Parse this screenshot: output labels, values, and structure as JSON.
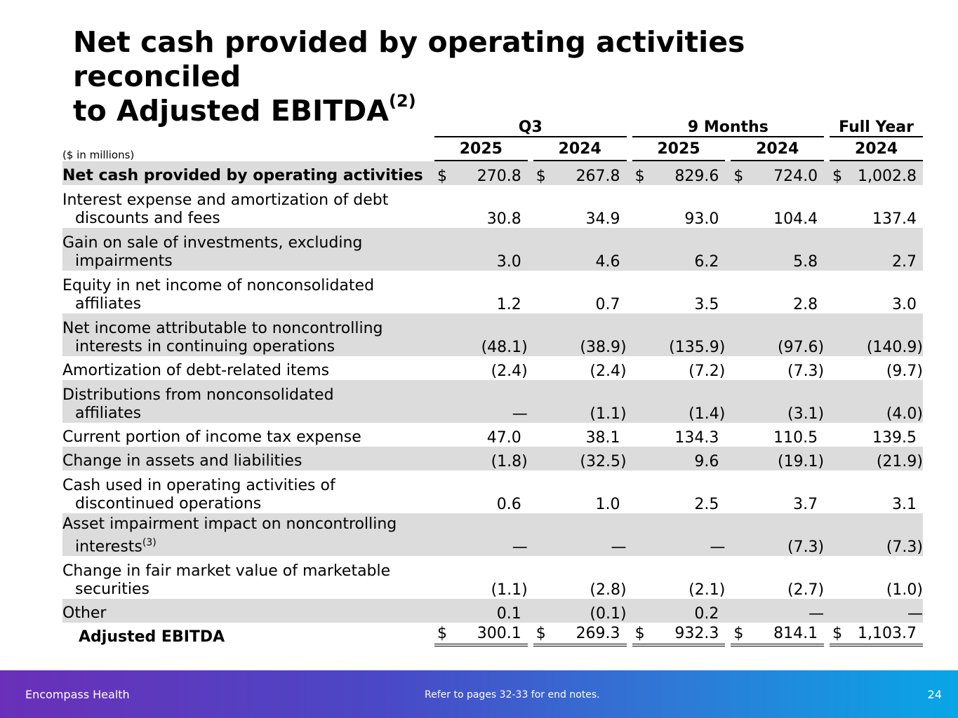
{
  "title": {
    "line1": "Net cash provided by operating activities reconciled",
    "line2": "to Adjusted EBITDA",
    "sup": "(2)"
  },
  "units_label": "($ in millions)",
  "column_groups": [
    "Q3",
    "9 Months",
    "Full Year"
  ],
  "years": [
    "2025",
    "2024",
    "2025",
    "2024",
    "2024"
  ],
  "rows": [
    {
      "l1": "Net cash provided by operating activities",
      "l2": "",
      "sup": "",
      "values": [
        "270.8",
        "267.8",
        "829.6",
        "724.0",
        "1,002.8"
      ],
      "dollar": true
    },
    {
      "l1": "Interest expense and amortization of debt",
      "l2": "discounts and fees",
      "sup": "",
      "values": [
        "30.8",
        "34.9",
        "93.0",
        "104.4",
        "137.4"
      ],
      "dollar": false
    },
    {
      "l1": "Gain on sale of investments, excluding",
      "l2": "impairments",
      "sup": "",
      "values": [
        "3.0",
        "4.6",
        "6.2",
        "5.8",
        "2.7"
      ],
      "dollar": false
    },
    {
      "l1": "Equity in net income of nonconsolidated",
      "l2": "affiliates",
      "sup": "",
      "values": [
        "1.2",
        "0.7",
        "3.5",
        "2.8",
        "3.0"
      ],
      "dollar": false
    },
    {
      "l1": "Net income attributable to noncontrolling",
      "l2": "interests in continuing operations",
      "sup": "",
      "values": [
        "(48.1)",
        "(38.9)",
        "(135.9)",
        "(97.6)",
        "(140.9)"
      ],
      "dollar": false
    },
    {
      "l1": "Amortization of debt-related items",
      "l2": "",
      "sup": "",
      "values": [
        "(2.4)",
        "(2.4)",
        "(7.2)",
        "(7.3)",
        "(9.7)"
      ],
      "dollar": false
    },
    {
      "l1": "Distributions from nonconsolidated",
      "l2": "affiliates",
      "sup": "",
      "values": [
        "—",
        "(1.1)",
        "(1.4)",
        "(3.1)",
        "(4.0)"
      ],
      "dollar": false
    },
    {
      "l1": "Current portion of income tax expense",
      "l2": "",
      "sup": "",
      "values": [
        "47.0",
        "38.1",
        "134.3",
        "110.5",
        "139.5"
      ],
      "dollar": false
    },
    {
      "l1": "Change in assets and liabilities",
      "l2": "",
      "sup": "",
      "values": [
        "(1.8)",
        "(32.5)",
        "9.6",
        "(19.1)",
        "(21.9)"
      ],
      "dollar": false
    },
    {
      "l1": "Cash used in operating activities of",
      "l2": "discontinued operations",
      "sup": "",
      "values": [
        "0.6",
        "1.0",
        "2.5",
        "3.7",
        "3.1"
      ],
      "dollar": false
    },
    {
      "l1": "Asset impairment impact on noncontrolling",
      "l2": "interests",
      "sup": "(3)",
      "values": [
        "—",
        "—",
        "—",
        "(7.3)",
        "(7.3)"
      ],
      "dollar": false
    },
    {
      "l1": "Change in fair market value of marketable",
      "l2": "securities",
      "sup": "",
      "values": [
        "(1.1)",
        "(2.8)",
        "(2.1)",
        "(2.7)",
        "(1.0)"
      ],
      "dollar": false
    },
    {
      "l1": "Other",
      "l2": "",
      "sup": "",
      "values": [
        "0.1",
        "(0.1)",
        "0.2",
        "—",
        "—"
      ],
      "dollar": false
    }
  ],
  "total": {
    "label": "Adjusted EBITDA",
    "values": [
      "300.1",
      "269.3",
      "932.3",
      "814.1",
      "1,103.7"
    ]
  },
  "currency_symbol": "$",
  "footer": {
    "company": "Encompass Health",
    "note": "Refer to pages 32-33 for end notes.",
    "page": "24"
  },
  "colors": {
    "row_shade": "#dcdcdc",
    "footer_start": "#6a2fb8",
    "footer_end": "#08a6e6"
  }
}
